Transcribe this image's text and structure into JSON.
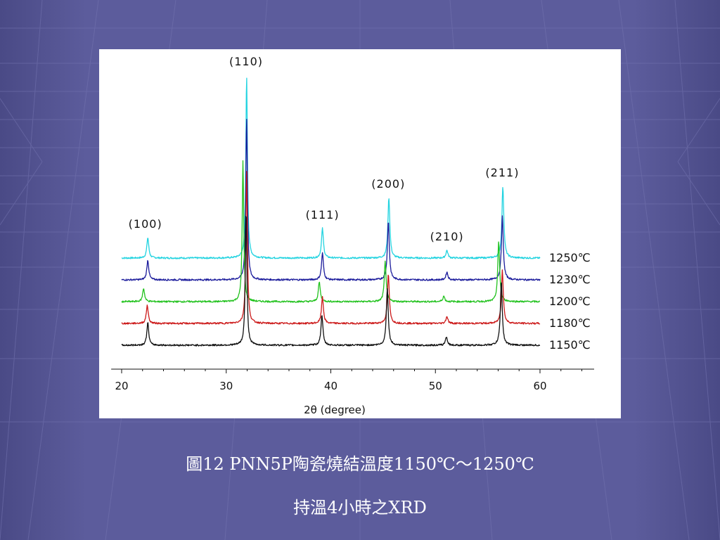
{
  "slide": {
    "caption_line1": "圖12 PNN5P陶瓷燒結溫度1150℃～1250℃",
    "caption_line2": "持溫4小時之XRD"
  },
  "chart_data": {
    "type": "line",
    "title": "",
    "xlabel": "2θ (degree)",
    "ylabel": "",
    "xlim": [
      19,
      65
    ],
    "x_ticks": [
      20,
      30,
      40,
      50,
      60
    ],
    "grid": false,
    "legend": "right-end labels",
    "peak_labels": [
      {
        "label": "(100)",
        "x": 22.4
      },
      {
        "label": "(110)",
        "x": 31.9
      },
      {
        "label": "(111)",
        "x": 39.2
      },
      {
        "label": "(200)",
        "x": 45.5
      },
      {
        "label": "(210)",
        "x": 51.1
      },
      {
        "label": "(211)",
        "x": 56.4
      }
    ],
    "series": [
      {
        "name": "1250℃",
        "color": "#22d3e0",
        "peaks": [
          {
            "x": 22.5,
            "h": 29
          },
          {
            "x": 31.95,
            "h": 260
          },
          {
            "x": 39.2,
            "h": 42
          },
          {
            "x": 45.55,
            "h": 86
          },
          {
            "x": 51.1,
            "h": 11
          },
          {
            "x": 56.45,
            "h": 102
          }
        ]
      },
      {
        "name": "1230℃",
        "color": "#1c1c9c",
        "peaks": [
          {
            "x": 22.5,
            "h": 28
          },
          {
            "x": 31.95,
            "h": 232
          },
          {
            "x": 39.2,
            "h": 38
          },
          {
            "x": 45.5,
            "h": 83
          },
          {
            "x": 51.1,
            "h": 11
          },
          {
            "x": 56.4,
            "h": 90
          }
        ]
      },
      {
        "name": "1200℃",
        "color": "#22c21e",
        "peaks": [
          {
            "x": 22.1,
            "h": 19
          },
          {
            "x": 31.6,
            "h": 200
          },
          {
            "x": 38.9,
            "h": 28
          },
          {
            "x": 45.2,
            "h": 57
          },
          {
            "x": 50.8,
            "h": 8
          },
          {
            "x": 56.05,
            "h": 85
          }
        ]
      },
      {
        "name": "1180℃",
        "color": "#cc1a1a",
        "peaks": [
          {
            "x": 22.45,
            "h": 26
          },
          {
            "x": 31.95,
            "h": 218
          },
          {
            "x": 39.2,
            "h": 38
          },
          {
            "x": 45.5,
            "h": 70
          },
          {
            "x": 51.1,
            "h": 10
          },
          {
            "x": 56.4,
            "h": 76
          }
        ]
      },
      {
        "name": "1150℃",
        "color": "#111111",
        "peaks": [
          {
            "x": 22.5,
            "h": 32
          },
          {
            "x": 31.9,
            "h": 192
          },
          {
            "x": 39.15,
            "h": 43
          },
          {
            "x": 45.4,
            "h": 81
          },
          {
            "x": 51.05,
            "h": 12
          },
          {
            "x": 56.3,
            "h": 91
          }
        ]
      }
    ]
  }
}
